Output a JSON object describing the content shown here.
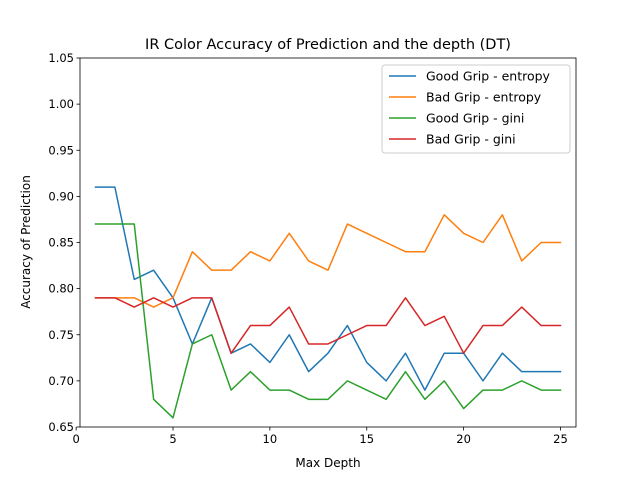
{
  "chart_data": {
    "type": "line",
    "title": "IR Color Accuracy of Prediction and the depth (DT)",
    "xlabel": "Max Depth",
    "ylabel": "Accuracy of Prediction",
    "xlim": [
      0.2,
      25.8
    ],
    "ylim": [
      0.65,
      1.05
    ],
    "xticks": [
      0,
      5,
      10,
      15,
      20,
      25
    ],
    "xtick_labels": [
      "0",
      "5",
      "10",
      "15",
      "20",
      "25"
    ],
    "yticks": [
      0.65,
      0.7,
      0.75,
      0.8,
      0.85,
      0.9,
      0.95,
      1.0,
      1.05
    ],
    "ytick_labels": [
      "0.65",
      "0.70",
      "0.75",
      "0.80",
      "0.85",
      "0.90",
      "0.95",
      "1.00",
      "1.05"
    ],
    "grid": false,
    "legend_position": "top-right",
    "x": [
      1,
      2,
      3,
      4,
      5,
      6,
      7,
      8,
      9,
      10,
      11,
      12,
      13,
      14,
      15,
      16,
      17,
      18,
      19,
      20,
      21,
      22,
      23,
      24,
      25
    ],
    "series": [
      {
        "name": "Good Grip - entropy",
        "color": "#1f77b4",
        "values": [
          0.91,
          0.91,
          0.81,
          0.82,
          0.79,
          0.74,
          0.79,
          0.73,
          0.74,
          0.72,
          0.75,
          0.71,
          0.73,
          0.76,
          0.72,
          0.7,
          0.73,
          0.69,
          0.73,
          0.73,
          0.7,
          0.73,
          0.71,
          0.71,
          0.71
        ]
      },
      {
        "name": "Bad Grip - entropy",
        "color": "#ff7f0e",
        "values": [
          0.79,
          0.79,
          0.79,
          0.78,
          0.79,
          0.84,
          0.82,
          0.82,
          0.84,
          0.83,
          0.86,
          0.83,
          0.82,
          0.87,
          0.86,
          0.85,
          0.84,
          0.84,
          0.88,
          0.86,
          0.85,
          0.88,
          0.83,
          0.85,
          0.85
        ]
      },
      {
        "name": "Good Grip - gini",
        "color": "#2ca02c",
        "values": [
          0.87,
          0.87,
          0.87,
          0.68,
          0.66,
          0.74,
          0.75,
          0.69,
          0.71,
          0.69,
          0.69,
          0.68,
          0.68,
          0.7,
          0.69,
          0.68,
          0.71,
          0.68,
          0.7,
          0.67,
          0.69,
          0.69,
          0.7,
          0.69,
          0.69
        ]
      },
      {
        "name": "Bad Grip - gini",
        "color": "#d62728",
        "values": [
          0.79,
          0.79,
          0.78,
          0.79,
          0.78,
          0.79,
          0.79,
          0.73,
          0.76,
          0.76,
          0.78,
          0.74,
          0.74,
          0.75,
          0.76,
          0.76,
          0.79,
          0.76,
          0.77,
          0.73,
          0.76,
          0.76,
          0.78,
          0.76,
          0.76
        ]
      }
    ]
  }
}
